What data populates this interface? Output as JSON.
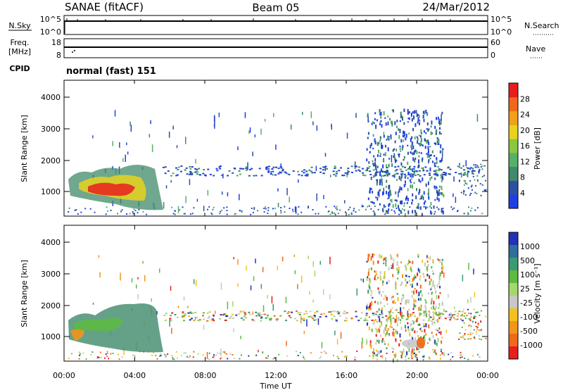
{
  "header": {
    "station": "SANAE (fitACF)",
    "beam": "Beam 05",
    "date": "24/Mar/2012"
  },
  "panels": {
    "nsky": {
      "left_label": "N.Sky",
      "right_label": "N.Search",
      "left_ticks": [
        "10^5",
        "10^0"
      ],
      "right_ticks": [
        "10^5",
        "10^0"
      ]
    },
    "freq": {
      "left_label_1": "Freq.",
      "left_label_2": "[MHz]",
      "right_label": "Nave",
      "left_ticks": [
        "18",
        "8"
      ],
      "right_ticks": [
        "60",
        "0"
      ]
    },
    "cpid": {
      "label": "CPID",
      "mode_text": "normal (fast) 151"
    }
  },
  "chart_data": [
    {
      "type": "heatmap",
      "title": "",
      "xlabel": "",
      "ylabel": "Slant Range [km]",
      "yticks": [
        "1000",
        "2000",
        "3000",
        "4000"
      ],
      "ylim": [
        180,
        4500
      ],
      "colorbar": {
        "label": "Power [dB]",
        "ticks": [
          "4",
          "8",
          "12",
          "16",
          "20",
          "24",
          "28"
        ],
        "colors": [
          "#1f3fe6",
          "#2d4fa6",
          "#3f8a6a",
          "#56b06a",
          "#8cc63f",
          "#e8d21c",
          "#f2a01a",
          "#ee6a1a",
          "#e81e1e"
        ]
      }
    },
    {
      "type": "heatmap",
      "title": "",
      "xlabel": "Time UT",
      "ylabel": "Slant Range [km]",
      "yticks": [
        "1000",
        "2000",
        "3000",
        "4000"
      ],
      "ylim": [
        180,
        4500
      ],
      "xticks": [
        "00:00",
        "04:00",
        "08:00",
        "12:00",
        "16:00",
        "20:00",
        "00:00"
      ],
      "colorbar": {
        "label": "Velocity [m s⁻¹]",
        "ticks": [
          "1000",
          "500",
          "100",
          "25",
          "-25",
          "-100",
          "-500",
          "-1000"
        ],
        "colors": [
          "#2233b5",
          "#2f6fa0",
          "#3c9a72",
          "#5dbb3f",
          "#a4d86a",
          "#c8c8c8",
          "#f4c21e",
          "#f2951a",
          "#ee6a1a",
          "#e81e1e"
        ]
      }
    }
  ]
}
